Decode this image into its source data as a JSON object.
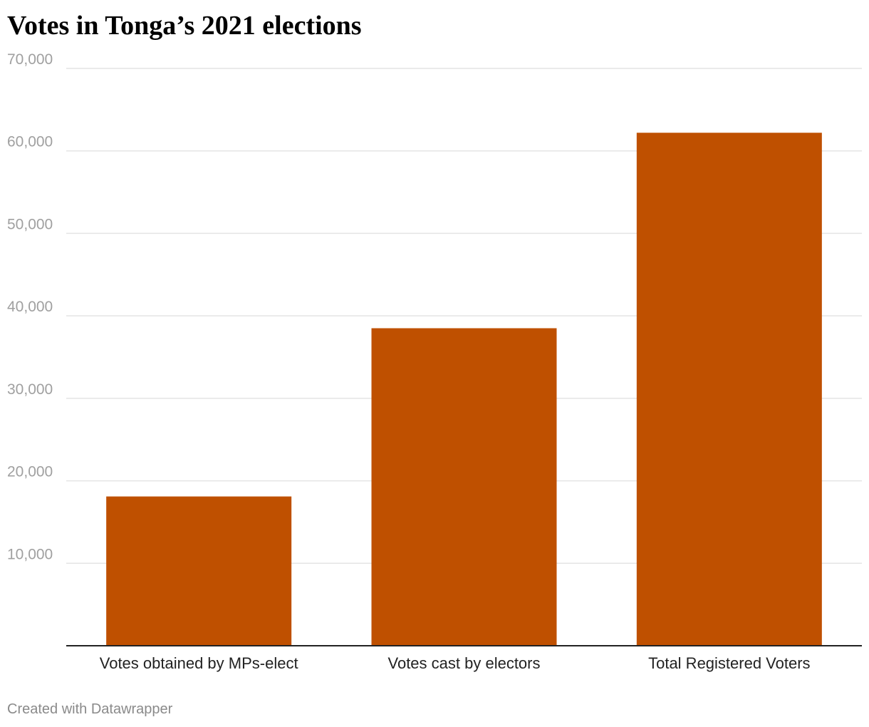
{
  "title": "Votes in Tonga’s 2021 elections",
  "footer": "Created with Datawrapper",
  "chart_data": {
    "type": "bar",
    "title": "Votes in Tonga’s 2021 elections",
    "xlabel": "",
    "ylabel": "",
    "categories": [
      "Votes obtained by MPs-elect",
      "Votes cast by electors",
      "Total Registered Voters"
    ],
    "values": [
      18100,
      38500,
      62200
    ],
    "ylim": [
      0,
      70000
    ],
    "yticks": [
      10000,
      20000,
      30000,
      40000,
      50000,
      60000,
      70000
    ],
    "ytick_labels": [
      "10,000",
      "20,000",
      "30,000",
      "40,000",
      "50,000",
      "60,000",
      "70,000"
    ],
    "grid": true,
    "legend": "none",
    "bar_color": "#bf5000",
    "grid_color": "#e4e4e4",
    "axis_color": "#222222"
  }
}
